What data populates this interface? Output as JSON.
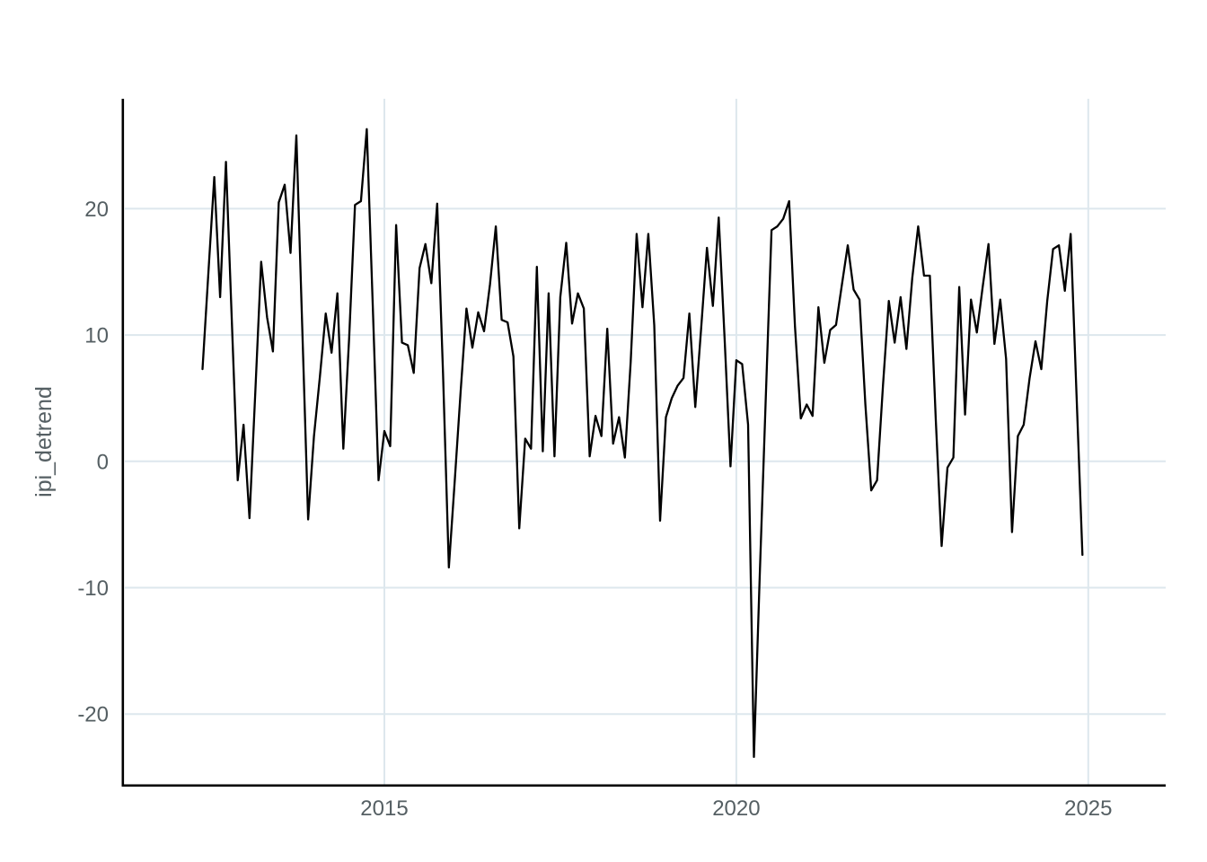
{
  "chart_data": {
    "type": "line",
    "title": "",
    "xlabel": "",
    "ylabel": "ipi_detrend",
    "x_ticks": [
      2015,
      2020,
      2025
    ],
    "x_tick_labels": [
      "2015",
      "2020",
      "2025"
    ],
    "y_ticks": [
      20,
      10,
      0,
      -10,
      -20
    ],
    "y_tick_labels": [
      "20",
      "10",
      "0",
      "-10",
      "-20"
    ],
    "xlim": [
      2011.3,
      2026.1
    ],
    "ylim": [
      -25.6,
      28.7
    ],
    "grid": "major-only",
    "legend": "none",
    "series": [
      {
        "name": "ipi_detrend",
        "frequency": "monthly",
        "start": "2012-06",
        "end": "2024-12",
        "values": [
          7.3,
          15.0,
          22.5,
          13.0,
          23.7,
          11.0,
          -1.5,
          2.9,
          -4.5,
          5.5,
          15.8,
          11.4,
          8.7,
          20.5,
          21.9,
          16.5,
          25.8,
          10.5,
          -4.6,
          2.0,
          6.7,
          11.7,
          8.6,
          13.3,
          1.0,
          9.8,
          20.3,
          20.6,
          26.3,
          12.7,
          -1.5,
          2.4,
          1.2,
          18.7,
          9.4,
          9.2,
          7.0,
          15.3,
          17.2,
          14.1,
          20.4,
          7.0,
          -8.4,
          -1.5,
          5.5,
          12.1,
          9.0,
          11.8,
          10.3,
          14.0,
          18.6,
          11.2,
          11.0,
          8.3,
          -5.3,
          1.8,
          1.0,
          15.4,
          0.8,
          13.3,
          0.4,
          13.0,
          17.3,
          10.9,
          13.3,
          12.1,
          0.4,
          3.6,
          2.0,
          10.5,
          1.4,
          3.5,
          0.3,
          7.9,
          18.0,
          12.2,
          18.0,
          10.8,
          -4.7,
          3.5,
          5.0,
          6.0,
          6.6,
          11.7,
          4.3,
          10.5,
          16.9,
          12.3,
          19.3,
          9.8,
          -0.4,
          8.0,
          7.7,
          2.9,
          -23.4,
          -9.0,
          4.6,
          18.3,
          18.6,
          19.2,
          20.6,
          10.7,
          3.4,
          4.5,
          3.6,
          12.2,
          7.8,
          10.4,
          10.8,
          14.0,
          17.1,
          13.6,
          12.8,
          4.5,
          -2.3,
          -1.5,
          6.0,
          12.7,
          9.4,
          13.0,
          8.9,
          14.5,
          18.6,
          14.7,
          14.7,
          3.3,
          -6.7,
          -0.5,
          0.3,
          13.8,
          3.7,
          12.8,
          10.2,
          13.8,
          17.2,
          9.3,
          12.8,
          8.1,
          -5.6,
          2.0,
          2.9,
          6.6,
          9.5,
          7.3,
          12.7,
          16.8,
          17.1,
          13.5,
          18.0,
          5.3,
          -7.4
        ]
      }
    ],
    "colors": {
      "line": "#000000",
      "grid": "#dde7ed",
      "axis": "#000000",
      "tick_text": "#555f63",
      "background": "#ffffff"
    }
  }
}
